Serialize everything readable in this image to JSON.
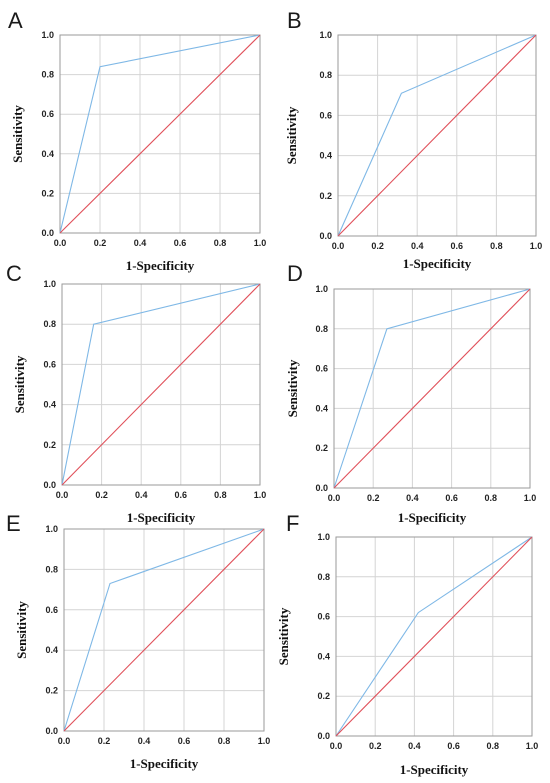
{
  "figure": {
    "colors": {
      "roc": "#7fb8e6",
      "reference": "#e0505a",
      "grid": "#d4d4d4"
    }
  },
  "chart_data": [
    {
      "panel": "A",
      "type": "line",
      "xlabel": "1-Specificity",
      "ylabel": "Sensitivity",
      "xlim": [
        0,
        1
      ],
      "ylim": [
        0,
        1
      ],
      "grid": true,
      "xticks": [
        "0.0",
        "0.2",
        "0.4",
        "0.6",
        "0.8",
        "1.0"
      ],
      "yticks": [
        "0.0",
        "0.2",
        "0.4",
        "0.6",
        "0.8",
        "1.0"
      ],
      "series": [
        {
          "role": "roc",
          "x": [
            0,
            0.2,
            1
          ],
          "y": [
            0,
            0.84,
            1
          ]
        },
        {
          "role": "reference",
          "x": [
            0,
            1
          ],
          "y": [
            0,
            1
          ]
        }
      ]
    },
    {
      "panel": "B",
      "type": "line",
      "xlabel": "1-Specificity",
      "ylabel": "Sensitivity",
      "xlim": [
        0,
        1
      ],
      "ylim": [
        0,
        1
      ],
      "grid": true,
      "xticks": [
        "0.0",
        "0.2",
        "0.4",
        "0.6",
        "0.8",
        "1.0"
      ],
      "yticks": [
        "0.0",
        "0.2",
        "0.4",
        "0.6",
        "0.8",
        "1.0"
      ],
      "series": [
        {
          "role": "roc",
          "x": [
            0,
            0.32,
            1
          ],
          "y": [
            0,
            0.71,
            1
          ]
        },
        {
          "role": "reference",
          "x": [
            0,
            1
          ],
          "y": [
            0,
            1
          ]
        }
      ]
    },
    {
      "panel": "C",
      "type": "line",
      "xlabel": "1-Specificity",
      "ylabel": "Sensitivity",
      "xlim": [
        0,
        1
      ],
      "ylim": [
        0,
        1
      ],
      "grid": true,
      "xticks": [
        "0.0",
        "0.2",
        "0.4",
        "0.6",
        "0.8",
        "1.0"
      ],
      "yticks": [
        "0.0",
        "0.2",
        "0.4",
        "0.6",
        "0.8",
        "1.0"
      ],
      "series": [
        {
          "role": "roc",
          "x": [
            0,
            0.16,
            1
          ],
          "y": [
            0,
            0.8,
            1
          ]
        },
        {
          "role": "reference",
          "x": [
            0,
            1
          ],
          "y": [
            0,
            1
          ]
        }
      ]
    },
    {
      "panel": "D",
      "type": "line",
      "xlabel": "1-Specificity",
      "ylabel": "Sensitivity",
      "xlim": [
        0,
        1
      ],
      "ylim": [
        0,
        1
      ],
      "grid": true,
      "xticks": [
        "0.0",
        "0.2",
        "0.4",
        "0.6",
        "0.8",
        "1.0"
      ],
      "yticks": [
        "0.0",
        "0.2",
        "0.4",
        "0.6",
        "0.8",
        "1.0"
      ],
      "series": [
        {
          "role": "roc",
          "x": [
            0,
            0.27,
            1
          ],
          "y": [
            0,
            0.8,
            1
          ]
        },
        {
          "role": "reference",
          "x": [
            0,
            1
          ],
          "y": [
            0,
            1
          ]
        }
      ]
    },
    {
      "panel": "E",
      "type": "line",
      "xlabel": "1-Specificity",
      "ylabel": "Sensitivity",
      "xlim": [
        0,
        1
      ],
      "ylim": [
        0,
        1
      ],
      "grid": true,
      "xticks": [
        "0.0",
        "0.2",
        "0.4",
        "0.6",
        "0.8",
        "1.0"
      ],
      "yticks": [
        "0.0",
        "0.2",
        "0.4",
        "0.6",
        "0.8",
        "1.0"
      ],
      "series": [
        {
          "role": "roc",
          "x": [
            0,
            0.23,
            1
          ],
          "y": [
            0,
            0.73,
            1
          ]
        },
        {
          "role": "reference",
          "x": [
            0,
            1
          ],
          "y": [
            0,
            1
          ]
        }
      ]
    },
    {
      "panel": "F",
      "type": "line",
      "xlabel": "1-Specificity",
      "ylabel": "Sensitivity",
      "xlim": [
        0,
        1
      ],
      "ylim": [
        0,
        1
      ],
      "grid": true,
      "xticks": [
        "0.0",
        "0.2",
        "0.4",
        "0.6",
        "0.8",
        "1.0"
      ],
      "yticks": [
        "0.0",
        "0.2",
        "0.4",
        "0.6",
        "0.8",
        "1.0"
      ],
      "series": [
        {
          "role": "roc",
          "x": [
            0,
            0.42,
            1
          ],
          "y": [
            0,
            0.62,
            1
          ]
        },
        {
          "role": "reference",
          "x": [
            0,
            1
          ],
          "y": [
            0,
            1
          ]
        }
      ]
    }
  ]
}
